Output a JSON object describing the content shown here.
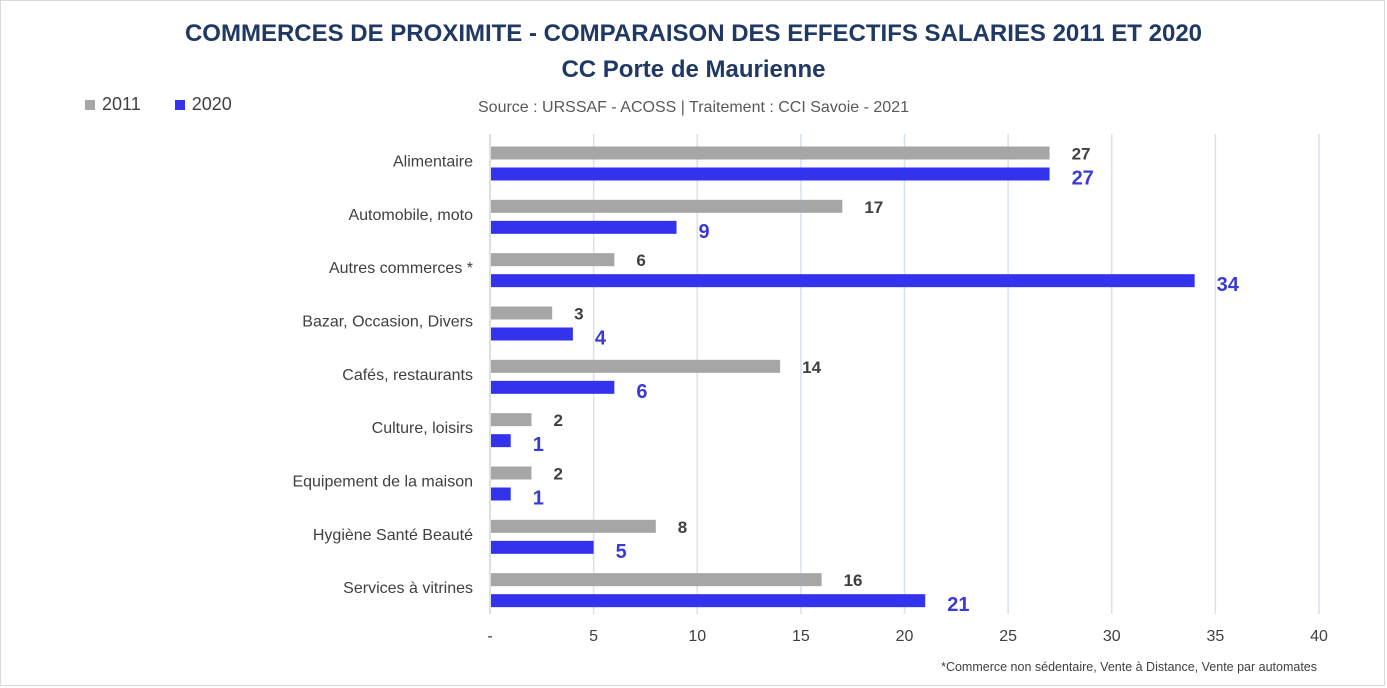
{
  "chart_data": {
    "type": "bar",
    "orientation": "horizontal",
    "title": "COMMERCES DE PROXIMITE - COMPARAISON DES EFFECTIFS SALARIES 2011 ET 2020",
    "subtitle": "CC Porte de Maurienne",
    "source": "Source  : URSSAF - ACOSS  |  Traitement : CCI Savoie - 2021",
    "footnote": "*Commerce non sédentaire, Vente à Distance, Vente par automates",
    "categories": [
      "Alimentaire",
      "Automobile, moto",
      "Autres commerces *",
      "Bazar, Occasion, Divers",
      "Cafés, restaurants",
      "Culture, loisirs",
      "Equipement de la maison",
      "Hygiène Santé Beauté",
      "Services à vitrines"
    ],
    "series": [
      {
        "name": "2011",
        "color": "#a6a6a6",
        "values": [
          27,
          17,
          6,
          3,
          14,
          2,
          2,
          8,
          16
        ]
      },
      {
        "name": "2020",
        "color": "#3333ee",
        "values": [
          27,
          9,
          34,
          4,
          6,
          1,
          1,
          5,
          21
        ]
      }
    ],
    "xlim": [
      0,
      40
    ],
    "xticks": [
      0,
      5,
      10,
      15,
      20,
      25,
      30,
      35,
      40
    ],
    "xtick_labels": [
      "-",
      "5",
      "10",
      "15",
      "20",
      "25",
      "30",
      "35",
      "40"
    ],
    "grid": "vertical",
    "legend_position": "top-left",
    "data_label_colors": {
      "2011": "#404040",
      "2020": "#3a3ad6"
    }
  }
}
